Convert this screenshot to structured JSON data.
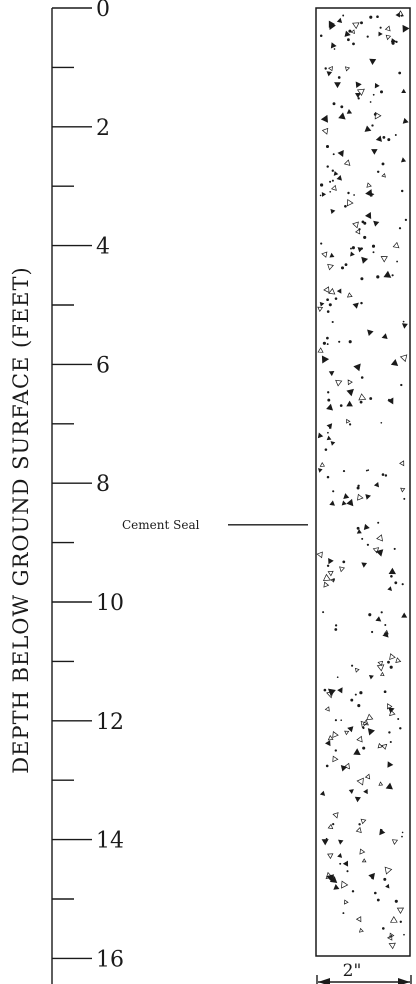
{
  "axis": {
    "title": "DEPTH BELOW GROUND SURFACE (FEET)",
    "min": 0,
    "max": 16,
    "major_ticks": [
      "0",
      "2",
      "4",
      "6",
      "8",
      "10",
      "12",
      "14",
      "16"
    ]
  },
  "well_column": {
    "fill_pattern": "concrete-stipple",
    "top_depth": 0,
    "bottom_depth": 16
  },
  "callout": {
    "label": "Cement Seal",
    "depth": 8.7
  },
  "dimension": {
    "label": "2\""
  }
}
